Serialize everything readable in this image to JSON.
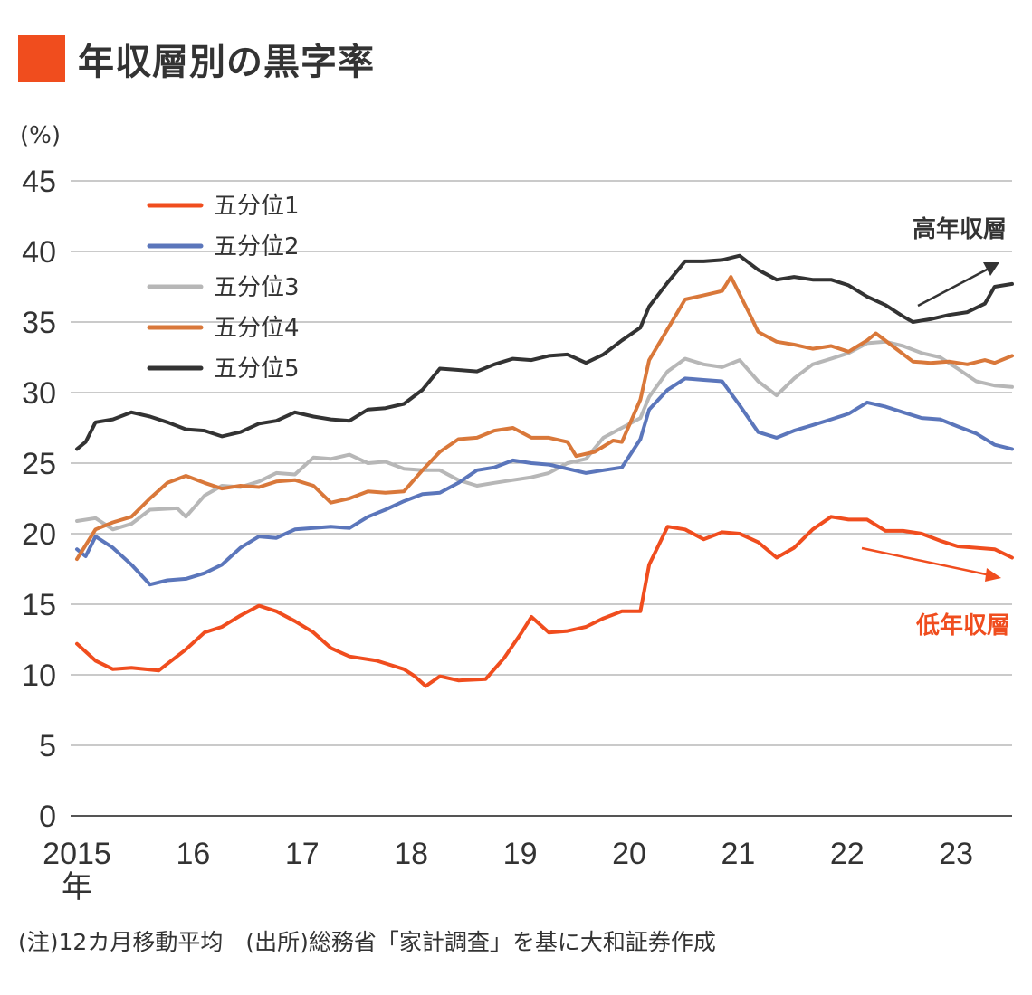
{
  "title": "年収層別の黒字率",
  "note": "(注)12カ月移動平均　(出所)総務省「家計調査」を基に大和証券作成",
  "chart_data": {
    "type": "line",
    "title": "年収層別の黒字率",
    "ylabel": "(%)",
    "ylim": [
      0,
      45
    ],
    "yticks": [
      "45",
      "40",
      "35",
      "30",
      "25",
      "20",
      "15",
      "10",
      "5",
      "0"
    ],
    "xticks": [
      "2015",
      "16",
      "17",
      "18",
      "19",
      "20",
      "21",
      "22",
      "23"
    ],
    "xtick_suffix": "年",
    "x_start": 2015.0,
    "x_end": 2023.58,
    "grid": true,
    "legend_position": "top-left",
    "annotations": {
      "high": "高年収層",
      "low": "低年収層"
    },
    "series": [
      {
        "name": "五分位1",
        "color": "#f04d1e",
        "points": [
          [
            2015.0,
            12.2
          ],
          [
            2015.17,
            11.0
          ],
          [
            2015.33,
            10.4
          ],
          [
            2015.5,
            10.5
          ],
          [
            2015.75,
            10.3
          ],
          [
            2016.0,
            11.8
          ],
          [
            2016.17,
            13.0
          ],
          [
            2016.33,
            13.4
          ],
          [
            2016.5,
            14.2
          ],
          [
            2016.67,
            14.9
          ],
          [
            2016.83,
            14.5
          ],
          [
            2017.0,
            13.8
          ],
          [
            2017.17,
            13.0
          ],
          [
            2017.33,
            11.9
          ],
          [
            2017.5,
            11.3
          ],
          [
            2017.75,
            11.0
          ],
          [
            2018.0,
            10.4
          ],
          [
            2018.1,
            9.9
          ],
          [
            2018.2,
            9.2
          ],
          [
            2018.33,
            9.9
          ],
          [
            2018.5,
            9.6
          ],
          [
            2018.75,
            9.7
          ],
          [
            2018.92,
            11.2
          ],
          [
            2019.08,
            13.0
          ],
          [
            2019.17,
            14.1
          ],
          [
            2019.33,
            13.0
          ],
          [
            2019.5,
            13.1
          ],
          [
            2019.67,
            13.4
          ],
          [
            2019.83,
            14.0
          ],
          [
            2020.0,
            14.5
          ],
          [
            2020.17,
            14.5
          ],
          [
            2020.25,
            17.8
          ],
          [
            2020.42,
            20.5
          ],
          [
            2020.58,
            20.3
          ],
          [
            2020.75,
            19.6
          ],
          [
            2020.92,
            20.1
          ],
          [
            2021.08,
            20.0
          ],
          [
            2021.25,
            19.4
          ],
          [
            2021.42,
            18.3
          ],
          [
            2021.58,
            19.0
          ],
          [
            2021.75,
            20.3
          ],
          [
            2021.92,
            21.2
          ],
          [
            2022.08,
            21.0
          ],
          [
            2022.25,
            21.0
          ],
          [
            2022.42,
            20.2
          ],
          [
            2022.58,
            20.2
          ],
          [
            2022.75,
            20.0
          ],
          [
            2022.92,
            19.5
          ],
          [
            2023.08,
            19.1
          ],
          [
            2023.25,
            19.0
          ],
          [
            2023.42,
            18.9
          ],
          [
            2023.58,
            18.3
          ]
        ]
      },
      {
        "name": "五分位2",
        "color": "#5b76bb",
        "points": [
          [
            2015.0,
            18.9
          ],
          [
            2015.08,
            18.4
          ],
          [
            2015.17,
            19.8
          ],
          [
            2015.33,
            19.0
          ],
          [
            2015.5,
            17.8
          ],
          [
            2015.67,
            16.4
          ],
          [
            2015.83,
            16.7
          ],
          [
            2016.0,
            16.8
          ],
          [
            2016.17,
            17.2
          ],
          [
            2016.33,
            17.8
          ],
          [
            2016.5,
            19.0
          ],
          [
            2016.67,
            19.8
          ],
          [
            2016.83,
            19.7
          ],
          [
            2017.0,
            20.3
          ],
          [
            2017.17,
            20.4
          ],
          [
            2017.33,
            20.5
          ],
          [
            2017.5,
            20.4
          ],
          [
            2017.67,
            21.2
          ],
          [
            2017.83,
            21.7
          ],
          [
            2018.0,
            22.3
          ],
          [
            2018.17,
            22.8
          ],
          [
            2018.33,
            22.9
          ],
          [
            2018.5,
            23.6
          ],
          [
            2018.67,
            24.5
          ],
          [
            2018.83,
            24.7
          ],
          [
            2019.0,
            25.2
          ],
          [
            2019.17,
            25.0
          ],
          [
            2019.33,
            24.9
          ],
          [
            2019.5,
            24.6
          ],
          [
            2019.67,
            24.3
          ],
          [
            2019.83,
            24.5
          ],
          [
            2020.0,
            24.7
          ],
          [
            2020.17,
            26.7
          ],
          [
            2020.25,
            28.8
          ],
          [
            2020.42,
            30.2
          ],
          [
            2020.58,
            31.0
          ],
          [
            2020.75,
            30.9
          ],
          [
            2020.92,
            30.8
          ],
          [
            2021.08,
            29.1
          ],
          [
            2021.25,
            27.2
          ],
          [
            2021.42,
            26.8
          ],
          [
            2021.58,
            27.3
          ],
          [
            2021.75,
            27.7
          ],
          [
            2021.92,
            28.1
          ],
          [
            2022.08,
            28.5
          ],
          [
            2022.25,
            29.3
          ],
          [
            2022.42,
            29.0
          ],
          [
            2022.58,
            28.6
          ],
          [
            2022.75,
            28.2
          ],
          [
            2022.92,
            28.1
          ],
          [
            2023.08,
            27.6
          ],
          [
            2023.25,
            27.1
          ],
          [
            2023.42,
            26.3
          ],
          [
            2023.58,
            26.0
          ]
        ]
      },
      {
        "name": "五分位3",
        "color": "#b7b7b7",
        "points": [
          [
            2015.0,
            20.9
          ],
          [
            2015.17,
            21.1
          ],
          [
            2015.33,
            20.3
          ],
          [
            2015.5,
            20.7
          ],
          [
            2015.67,
            21.7
          ],
          [
            2015.92,
            21.8
          ],
          [
            2016.0,
            21.2
          ],
          [
            2016.17,
            22.7
          ],
          [
            2016.33,
            23.4
          ],
          [
            2016.5,
            23.3
          ],
          [
            2016.67,
            23.7
          ],
          [
            2016.83,
            24.3
          ],
          [
            2017.0,
            24.2
          ],
          [
            2017.17,
            25.4
          ],
          [
            2017.33,
            25.3
          ],
          [
            2017.5,
            25.6
          ],
          [
            2017.67,
            25.0
          ],
          [
            2017.83,
            25.1
          ],
          [
            2018.0,
            24.6
          ],
          [
            2018.17,
            24.5
          ],
          [
            2018.33,
            24.5
          ],
          [
            2018.5,
            23.8
          ],
          [
            2018.67,
            23.4
          ],
          [
            2018.83,
            23.6
          ],
          [
            2019.0,
            23.8
          ],
          [
            2019.17,
            24.0
          ],
          [
            2019.33,
            24.3
          ],
          [
            2019.5,
            25.0
          ],
          [
            2019.67,
            25.3
          ],
          [
            2019.83,
            26.8
          ],
          [
            2020.0,
            27.5
          ],
          [
            2020.17,
            28.2
          ],
          [
            2020.25,
            29.7
          ],
          [
            2020.42,
            31.5
          ],
          [
            2020.58,
            32.4
          ],
          [
            2020.75,
            32.0
          ],
          [
            2020.92,
            31.8
          ],
          [
            2021.08,
            32.3
          ],
          [
            2021.25,
            30.8
          ],
          [
            2021.42,
            29.8
          ],
          [
            2021.58,
            31.0
          ],
          [
            2021.75,
            32.0
          ],
          [
            2021.92,
            32.4
          ],
          [
            2022.08,
            32.8
          ],
          [
            2022.25,
            33.5
          ],
          [
            2022.42,
            33.6
          ],
          [
            2022.58,
            33.3
          ],
          [
            2022.75,
            32.8
          ],
          [
            2022.92,
            32.5
          ],
          [
            2023.08,
            31.7
          ],
          [
            2023.25,
            30.8
          ],
          [
            2023.42,
            30.5
          ],
          [
            2023.58,
            30.4
          ]
        ]
      },
      {
        "name": "五分位4",
        "color": "#d9783a",
        "points": [
          [
            2015.0,
            18.2
          ],
          [
            2015.17,
            20.3
          ],
          [
            2015.33,
            20.8
          ],
          [
            2015.5,
            21.2
          ],
          [
            2015.67,
            22.5
          ],
          [
            2015.83,
            23.6
          ],
          [
            2016.0,
            24.1
          ],
          [
            2016.17,
            23.6
          ],
          [
            2016.33,
            23.2
          ],
          [
            2016.5,
            23.4
          ],
          [
            2016.67,
            23.3
          ],
          [
            2016.83,
            23.7
          ],
          [
            2017.0,
            23.8
          ],
          [
            2017.17,
            23.4
          ],
          [
            2017.33,
            22.2
          ],
          [
            2017.5,
            22.5
          ],
          [
            2017.67,
            23.0
          ],
          [
            2017.83,
            22.9
          ],
          [
            2018.0,
            23.0
          ],
          [
            2018.17,
            24.5
          ],
          [
            2018.33,
            25.8
          ],
          [
            2018.5,
            26.7
          ],
          [
            2018.67,
            26.8
          ],
          [
            2018.83,
            27.3
          ],
          [
            2019.0,
            27.5
          ],
          [
            2019.17,
            26.8
          ],
          [
            2019.33,
            26.8
          ],
          [
            2019.5,
            26.5
          ],
          [
            2019.58,
            25.5
          ],
          [
            2019.75,
            25.8
          ],
          [
            2019.92,
            26.6
          ],
          [
            2020.0,
            26.5
          ],
          [
            2020.17,
            29.5
          ],
          [
            2020.25,
            32.3
          ],
          [
            2020.42,
            34.5
          ],
          [
            2020.58,
            36.6
          ],
          [
            2020.75,
            36.9
          ],
          [
            2020.92,
            37.2
          ],
          [
            2021.0,
            38.2
          ],
          [
            2021.17,
            35.6
          ],
          [
            2021.25,
            34.3
          ],
          [
            2021.42,
            33.6
          ],
          [
            2021.58,
            33.4
          ],
          [
            2021.75,
            33.1
          ],
          [
            2021.92,
            33.3
          ],
          [
            2022.08,
            32.9
          ],
          [
            2022.25,
            33.7
          ],
          [
            2022.33,
            34.2
          ],
          [
            2022.5,
            33.2
          ],
          [
            2022.67,
            32.2
          ],
          [
            2022.83,
            32.1
          ],
          [
            2023.0,
            32.2
          ],
          [
            2023.17,
            32.0
          ],
          [
            2023.33,
            32.3
          ],
          [
            2023.42,
            32.1
          ],
          [
            2023.58,
            32.6
          ]
        ]
      },
      {
        "name": "五分位5",
        "color": "#333333",
        "points": [
          [
            2015.0,
            26.0
          ],
          [
            2015.08,
            26.5
          ],
          [
            2015.17,
            27.9
          ],
          [
            2015.33,
            28.1
          ],
          [
            2015.5,
            28.6
          ],
          [
            2015.67,
            28.3
          ],
          [
            2015.83,
            27.9
          ],
          [
            2016.0,
            27.4
          ],
          [
            2016.17,
            27.3
          ],
          [
            2016.33,
            26.9
          ],
          [
            2016.5,
            27.2
          ],
          [
            2016.67,
            27.8
          ],
          [
            2016.83,
            28.0
          ],
          [
            2017.0,
            28.6
          ],
          [
            2017.17,
            28.3
          ],
          [
            2017.33,
            28.1
          ],
          [
            2017.5,
            28.0
          ],
          [
            2017.67,
            28.8
          ],
          [
            2017.83,
            28.9
          ],
          [
            2018.0,
            29.2
          ],
          [
            2018.17,
            30.2
          ],
          [
            2018.33,
            31.7
          ],
          [
            2018.5,
            31.6
          ],
          [
            2018.67,
            31.5
          ],
          [
            2018.83,
            32.0
          ],
          [
            2019.0,
            32.4
          ],
          [
            2019.17,
            32.3
          ],
          [
            2019.33,
            32.6
          ],
          [
            2019.5,
            32.7
          ],
          [
            2019.67,
            32.1
          ],
          [
            2019.83,
            32.7
          ],
          [
            2020.0,
            33.7
          ],
          [
            2020.17,
            34.6
          ],
          [
            2020.25,
            36.1
          ],
          [
            2020.42,
            37.8
          ],
          [
            2020.58,
            39.3
          ],
          [
            2020.75,
            39.3
          ],
          [
            2020.92,
            39.4
          ],
          [
            2021.08,
            39.7
          ],
          [
            2021.25,
            38.7
          ],
          [
            2021.42,
            38.0
          ],
          [
            2021.58,
            38.2
          ],
          [
            2021.75,
            38.0
          ],
          [
            2021.92,
            38.0
          ],
          [
            2022.08,
            37.6
          ],
          [
            2022.25,
            36.8
          ],
          [
            2022.42,
            36.2
          ],
          [
            2022.58,
            35.4
          ],
          [
            2022.67,
            35.0
          ],
          [
            2022.83,
            35.2
          ],
          [
            2023.0,
            35.5
          ],
          [
            2023.17,
            35.7
          ],
          [
            2023.33,
            36.3
          ],
          [
            2023.42,
            37.5
          ],
          [
            2023.58,
            37.7
          ]
        ]
      }
    ]
  }
}
